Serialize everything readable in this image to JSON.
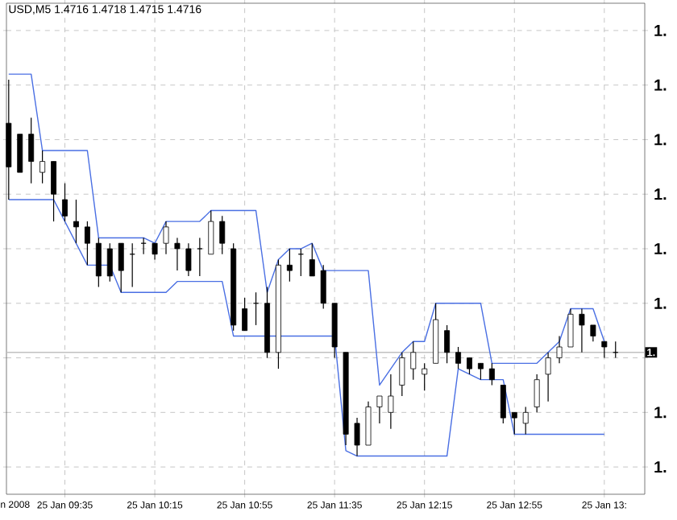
{
  "chart_data": {
    "type": "candlestick",
    "title": "USD,M5  1.4716 1.4718 1.4715 1.4716",
    "color": "#000000",
    "grid": true,
    "x": [
      "2008-01-25T09:10",
      "2008-01-25T09:15",
      "2008-01-25T09:20",
      "2008-01-25T09:25",
      "2008-01-25T09:30",
      "2008-01-25T09:35",
      "2008-01-25T09:40",
      "2008-01-25T09:45",
      "2008-01-25T09:50",
      "2008-01-25T09:55",
      "2008-01-25T10:00",
      "2008-01-25T10:05",
      "2008-01-25T10:10",
      "2008-01-25T10:15",
      "2008-01-25T10:20",
      "2008-01-25T10:25",
      "2008-01-25T10:30",
      "2008-01-25T10:35",
      "2008-01-25T10:40",
      "2008-01-25T10:45",
      "2008-01-25T10:50",
      "2008-01-25T10:55",
      "2008-01-25T11:00",
      "2008-01-25T11:05",
      "2008-01-25T11:10",
      "2008-01-25T11:15",
      "2008-01-25T11:20",
      "2008-01-25T11:25",
      "2008-01-25T11:30",
      "2008-01-25T11:35",
      "2008-01-25T11:40",
      "2008-01-25T11:45",
      "2008-01-25T11:50",
      "2008-01-25T11:55",
      "2008-01-25T12:00",
      "2008-01-25T12:05",
      "2008-01-25T12:10",
      "2008-01-25T12:15",
      "2008-01-25T12:20",
      "2008-01-25T12:25",
      "2008-01-25T12:30",
      "2008-01-25T12:35",
      "2008-01-25T12:40",
      "2008-01-25T12:45",
      "2008-01-25T12:50",
      "2008-01-25T12:55",
      "2008-01-25T13:00",
      "2008-01-25T13:05",
      "2008-01-25T13:10",
      "2008-01-25T13:15",
      "2008-01-25T13:20",
      "2008-01-25T13:25",
      "2008-01-25T13:30",
      "2008-01-25T13:35",
      "2008-01-25T13:40"
    ],
    "ohlc": [
      [
        1.4758,
        1.4766,
        1.4744,
        1.475
      ],
      [
        1.4756,
        1.4756,
        1.4749,
        1.4749
      ],
      [
        1.4756,
        1.4759,
        1.4747,
        1.4751
      ],
      [
        1.4749,
        1.4753,
        1.4747,
        1.4751
      ],
      [
        1.4751,
        1.4751,
        1.474,
        1.4745
      ],
      [
        1.4744,
        1.4747,
        1.474,
        1.4741
      ],
      [
        1.474,
        1.4744,
        1.4736,
        1.4739
      ],
      [
        1.4739,
        1.474,
        1.4732,
        1.4736
      ],
      [
        1.4736,
        1.4737,
        1.4728,
        1.473
      ],
      [
        1.4735,
        1.4736,
        1.4729,
        1.473
      ],
      [
        1.4736,
        1.4736,
        1.4727,
        1.4731
      ],
      [
        1.4734,
        1.4736,
        1.4728,
        1.4734
      ],
      [
        1.4736,
        1.4737,
        1.4734,
        1.4736
      ],
      [
        1.4736,
        1.4736,
        1.4733,
        1.4734
      ],
      [
        1.4736,
        1.474,
        1.4734,
        1.4739
      ],
      [
        1.4736,
        1.4737,
        1.4731,
        1.4735
      ],
      [
        1.4735,
        1.4736,
        1.473,
        1.4731
      ],
      [
        1.4735,
        1.4737,
        1.473,
        1.4735
      ],
      [
        1.4734,
        1.4742,
        1.4734,
        1.474
      ],
      [
        1.474,
        1.4741,
        1.4734,
        1.4736
      ],
      [
        1.4735,
        1.4736,
        1.472,
        1.4721
      ],
      [
        1.4724,
        1.4726,
        1.472,
        1.472
      ],
      [
        1.4725,
        1.4727,
        1.4721,
        1.4725
      ],
      [
        1.4725,
        1.4728,
        1.4715,
        1.4716
      ],
      [
        1.4716,
        1.4733,
        1.4713,
        1.4732
      ],
      [
        1.4732,
        1.4735,
        1.4729,
        1.4731
      ],
      [
        1.4734,
        1.4735,
        1.473,
        1.4734
      ],
      [
        1.4733,
        1.4736,
        1.473,
        1.473
      ],
      [
        1.4731,
        1.4732,
        1.4724,
        1.4725
      ],
      [
        1.4725,
        1.4725,
        1.4715,
        1.4717
      ],
      [
        1.4716,
        1.4716,
        1.4699,
        1.4701
      ],
      [
        1.4703,
        1.4704,
        1.4697,
        1.4699
      ],
      [
        1.4699,
        1.4707,
        1.4699,
        1.4706
      ],
      [
        1.4706,
        1.4708,
        1.4703,
        1.4708
      ],
      [
        1.4705,
        1.4712,
        1.4702,
        1.4708
      ],
      [
        1.471,
        1.4716,
        1.4708,
        1.4715
      ],
      [
        1.4713,
        1.4718,
        1.4711,
        1.4716
      ],
      [
        1.4712,
        1.4714,
        1.4709,
        1.4713
      ],
      [
        1.4714,
        1.4725,
        1.4714,
        1.4722
      ],
      [
        1.472,
        1.4721,
        1.4714,
        1.4716
      ],
      [
        1.4716,
        1.4717,
        1.4713,
        1.4714
      ],
      [
        1.4715,
        1.4715,
        1.4712,
        1.4713
      ],
      [
        1.4714,
        1.4714,
        1.4711,
        1.4713
      ],
      [
        1.4713,
        1.4714,
        1.471,
        1.4711
      ],
      [
        1.471,
        1.471,
        1.4703,
        1.4704
      ],
      [
        1.4705,
        1.4705,
        1.4701,
        1.4704
      ],
      [
        1.4703,
        1.4706,
        1.4701,
        1.4705
      ],
      [
        1.4706,
        1.4712,
        1.4705,
        1.4711
      ],
      [
        1.4712,
        1.4716,
        1.4707,
        1.4715
      ],
      [
        1.4715,
        1.4719,
        1.4714,
        1.4717
      ],
      [
        1.4717,
        1.4724,
        1.4717,
        1.4723
      ],
      [
        1.4723,
        1.4724,
        1.4716,
        1.4721
      ],
      [
        1.4721,
        1.4721,
        1.4718,
        1.4719
      ],
      [
        1.4718,
        1.4718,
        1.4715,
        1.4717
      ],
      [
        1.4716,
        1.4718,
        1.4715,
        1.4716
      ]
    ],
    "series": [
      {
        "type": "line",
        "color": "#4a6fe3",
        "x": [
          "2008-01-25T09:10",
          "2008-01-25T09:20",
          "2008-01-25T09:25",
          "2008-01-25T09:45",
          "2008-01-25T09:50",
          "2008-01-25T10:10",
          "2008-01-25T10:15",
          "2008-01-25T10:20",
          "2008-01-25T10:35",
          "2008-01-25T10:40",
          "2008-01-25T11:00",
          "2008-01-25T11:05",
          "2008-01-25T11:10",
          "2008-01-25T11:15",
          "2008-01-25T11:20",
          "2008-01-25T11:25",
          "2008-01-25T11:30",
          "2008-01-25T11:50",
          "2008-01-25T11:55",
          "2008-01-25T12:05",
          "2008-01-25T12:10",
          "2008-01-25T12:15",
          "2008-01-25T12:20",
          "2008-01-25T12:40",
          "2008-01-25T12:45",
          "2008-01-25T13:05",
          "2008-01-25T13:10",
          "2008-01-25T13:15",
          "2008-01-25T13:20",
          "2008-01-25T13:30",
          "2008-01-25T13:35"
        ],
        "values": [
          1.4767,
          1.4767,
          1.4753,
          1.4753,
          1.4737,
          1.4737,
          1.4736,
          1.474,
          1.474,
          1.4742,
          1.4742,
          1.4727,
          1.4733,
          1.4735,
          1.4735,
          1.4736,
          1.4731,
          1.4731,
          1.471,
          1.4716,
          1.4718,
          1.4718,
          1.4725,
          1.4725,
          1.4714,
          1.4714,
          1.4716,
          1.4718,
          1.4724,
          1.4724,
          1.4718
        ]
      },
      {
        "type": "line",
        "color": "#4a6fe3",
        "x": [
          "2008-01-25T09:10",
          "2008-01-25T09:30",
          "2008-01-25T09:40",
          "2008-01-25T09:45",
          "2008-01-25T09:55",
          "2008-01-25T10:00",
          "2008-01-25T10:20",
          "2008-01-25T10:25",
          "2008-01-25T10:45",
          "2008-01-25T10:50",
          "2008-01-25T11:35",
          "2008-01-25T11:40",
          "2008-01-25T11:45",
          "2008-01-25T12:25",
          "2008-01-25T12:30",
          "2008-01-25T12:40",
          "2008-01-25T12:50",
          "2008-01-25T12:55",
          "2008-01-25T13:35"
        ],
        "values": [
          1.4744,
          1.4744,
          1.4736,
          1.4732,
          1.4732,
          1.4727,
          1.4727,
          1.4729,
          1.4729,
          1.4719,
          1.4719,
          1.4698,
          1.4697,
          1.4697,
          1.4713,
          1.4711,
          1.4711,
          1.4701,
          1.4701
        ]
      }
    ],
    "ref_lines": [
      {
        "axis": "y",
        "value": 1.4716,
        "label": "1.",
        "color": "#c0c0c0"
      }
    ],
    "xlim": [
      "2008-01-25T09:09",
      "2008-01-25T13:53"
    ],
    "xticks": [
      {
        "value": "2008-01-25T09:35",
        "label": "25 Jan 09:35"
      },
      {
        "value": "2008-01-25T10:15",
        "label": "25 Jan 10:15"
      },
      {
        "value": "2008-01-25T10:55",
        "label": "25 Jan 10:55"
      },
      {
        "value": "2008-01-25T11:35",
        "label": "25 Jan 11:35"
      },
      {
        "value": "2008-01-25T12:15",
        "label": "25 Jan 12:15"
      },
      {
        "value": "2008-01-25T12:55",
        "label": "25 Jan 12:55"
      },
      {
        "value": "2008-01-25T13:35",
        "label": "25 Jan 13:"
      }
    ],
    "ylim": [
      1.469,
      1.478
    ],
    "yticks": [
      {
        "value": 1.4775,
        "label": "1."
      },
      {
        "value": 1.4765,
        "label": "1."
      },
      {
        "value": 1.4755,
        "label": "1."
      },
      {
        "value": 1.4745,
        "label": "1."
      },
      {
        "value": 1.4735,
        "label": "1."
      },
      {
        "value": 1.4725,
        "label": "1."
      },
      {
        "value": 1.4715,
        "label": null
      },
      {
        "value": 1.4705,
        "label": "1."
      },
      {
        "value": 1.4695,
        "label": "1."
      }
    ],
    "annotations": [
      "n 2008"
    ]
  }
}
